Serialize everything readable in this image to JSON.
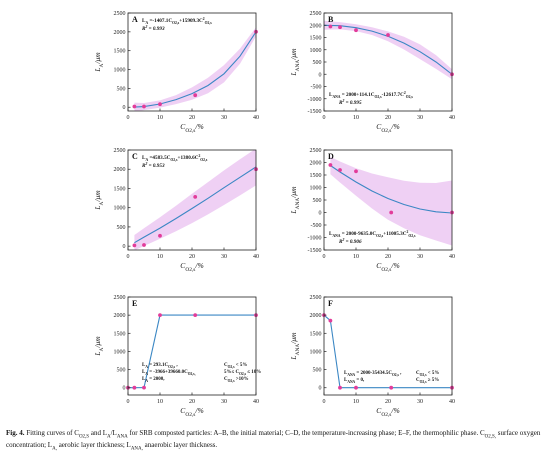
{
  "colors": {
    "curve": "#3b87c4",
    "band": "#ecc8f2",
    "point": "#e23c9a",
    "axis": "#222222"
  },
  "chart_data": [
    {
      "panel": "A",
      "type": "scatter",
      "fit": "quadratic",
      "xlabel": "C_O2,s/%",
      "ylabel": "L_A/μm",
      "equation": "L_A =-1407.1C_O2,s+15909.3C²_O2,s",
      "r2": "R² = 0.993",
      "equation_position": "top-left",
      "xlim": [
        0,
        40
      ],
      "ylim": [
        -100,
        2500
      ],
      "x_ticks": [
        "0",
        "10",
        "20",
        "30",
        "40"
      ],
      "y_ticks": [
        "0",
        "500",
        "1000",
        "1500",
        "2000",
        "2500"
      ],
      "points": [
        [
          2,
          20
        ],
        [
          5,
          20
        ],
        [
          10,
          80
        ],
        [
          21,
          320
        ],
        [
          40,
          2000
        ]
      ],
      "curve": [
        [
          2,
          3
        ],
        [
          5,
          18
        ],
        [
          10,
          86
        ],
        [
          15,
          202
        ],
        [
          20,
          362
        ],
        [
          25,
          577
        ],
        [
          30,
          888
        ],
        [
          35,
          1355
        ],
        [
          40,
          2000
        ]
      ],
      "band": [
        [
          2,
          120
        ],
        [
          5,
          95
        ],
        [
          10,
          95
        ],
        [
          15,
          120
        ],
        [
          20,
          165
        ],
        [
          25,
          205
        ],
        [
          30,
          230
        ],
        [
          35,
          200
        ],
        [
          40,
          120
        ]
      ]
    },
    {
      "panel": "B",
      "type": "scatter",
      "fit": "quadratic",
      "xlabel": "C_O2,s/%",
      "ylabel": "L_ANA/μm",
      "equation": "L_ANA = 2000+114.1C_O2,s-12617.7C²_O2,s",
      "r2": "R² = 0.995",
      "equation_position": "bottom-left",
      "xlim": [
        0,
        40
      ],
      "ylim": [
        -1500,
        2500
      ],
      "x_ticks": [
        "0",
        "10",
        "20",
        "30",
        "40"
      ],
      "y_ticks": [
        "-1500",
        "-1000",
        "-500",
        "0",
        "500",
        "1000",
        "1500",
        "2000",
        "2500"
      ],
      "points": [
        [
          2,
          1950
        ],
        [
          5,
          1920
        ],
        [
          10,
          1800
        ],
        [
          20,
          1600
        ],
        [
          40,
          0
        ]
      ],
      "curve": [
        [
          0,
          2000
        ],
        [
          5,
          1980
        ],
        [
          10,
          1900
        ],
        [
          15,
          1760
        ],
        [
          20,
          1550
        ],
        [
          25,
          1270
        ],
        [
          30,
          920
        ],
        [
          35,
          500
        ],
        [
          40,
          0
        ]
      ],
      "band": [
        [
          0,
          180
        ],
        [
          5,
          150
        ],
        [
          10,
          140
        ],
        [
          15,
          160
        ],
        [
          20,
          200
        ],
        [
          25,
          260
        ],
        [
          30,
          300
        ],
        [
          35,
          280
        ],
        [
          40,
          200
        ]
      ]
    },
    {
      "panel": "C",
      "type": "scatter",
      "fit": "quadratic",
      "xlabel": "C_O2,s/%",
      "ylabel": "L_A/μm",
      "equation": "L_A =4583.5C_O2,s+1380.6C²_O2,s",
      "r2": "R² = 0.953",
      "equation_position": "top-left",
      "xlim": [
        0,
        40
      ],
      "ylim": [
        -100,
        2500
      ],
      "x_ticks": [
        "0",
        "10",
        "20",
        "30",
        "40"
      ],
      "y_ticks": [
        "0",
        "500",
        "1000",
        "1500",
        "2000",
        "2500"
      ],
      "points": [
        [
          2,
          20
        ],
        [
          5,
          30
        ],
        [
          10,
          270
        ],
        [
          21,
          1280
        ],
        [
          40,
          2000
        ]
      ],
      "curve": [
        [
          2,
          90
        ],
        [
          5,
          235
        ],
        [
          10,
          470
        ],
        [
          15,
          720
        ],
        [
          20,
          980
        ],
        [
          25,
          1245
        ],
        [
          30,
          1520
        ],
        [
          35,
          1790
        ],
        [
          40,
          2060
        ]
      ],
      "band": [
        [
          2,
          200
        ],
        [
          5,
          230
        ],
        [
          10,
          280
        ],
        [
          15,
          330
        ],
        [
          20,
          380
        ],
        [
          25,
          420
        ],
        [
          30,
          450
        ],
        [
          35,
          470
        ],
        [
          40,
          480
        ]
      ]
    },
    {
      "panel": "D",
      "type": "scatter",
      "fit": "quadratic",
      "xlabel": "C_O2,s/%",
      "ylabel": "L_ANA/μm",
      "equation": "L_ANA = 2000-9635.0C_O2,s+11005.3C²_O2,s",
      "r2": "R² = 0.906",
      "equation_position": "bottom-left",
      "xlim": [
        0,
        40
      ],
      "ylim": [
        -1500,
        2500
      ],
      "x_ticks": [
        "0",
        "10",
        "20",
        "30",
        "40"
      ],
      "y_ticks": [
        "-1500",
        "-1000",
        "-500",
        "0",
        "500",
        "1000",
        "1500",
        "2000",
        "2500"
      ],
      "points": [
        [
          2,
          1900
        ],
        [
          5,
          1700
        ],
        [
          10,
          1650
        ],
        [
          21,
          0
        ],
        [
          40,
          0
        ]
      ],
      "curve": [
        [
          2,
          1880
        ],
        [
          5,
          1620
        ],
        [
          10,
          1220
        ],
        [
          15,
          860
        ],
        [
          20,
          560
        ],
        [
          25,
          320
        ],
        [
          30,
          140
        ],
        [
          35,
          30
        ],
        [
          40,
          -20
        ]
      ],
      "band": [
        [
          2,
          350
        ],
        [
          5,
          420
        ],
        [
          10,
          550
        ],
        [
          15,
          700
        ],
        [
          20,
          850
        ],
        [
          25,
          950
        ],
        [
          30,
          1050
        ],
        [
          35,
          1150
        ],
        [
          40,
          1300
        ]
      ]
    },
    {
      "panel": "E",
      "type": "line",
      "xlabel": "C_O2,s/%",
      "ylabel": "L_A/μm",
      "equations_left": [
        "L_A = 293.1C_O2,s ,",
        "L_A = -3966+39660.0C_O2,s,",
        "L_A = 2000,"
      ],
      "equations_right": [
        "C_O2,s < 5%",
        "5%≤ C_O2,s ≤ 10%",
        "C_O2,s >10%"
      ],
      "xlim": [
        0,
        40
      ],
      "ylim": [
        -200,
        2500
      ],
      "x_ticks": [
        "0",
        "10",
        "20",
        "30",
        "40"
      ],
      "y_ticks": [
        "0",
        "500",
        "1000",
        "1500",
        "2000",
        "2500"
      ],
      "points": [
        [
          0,
          0
        ],
        [
          2,
          0
        ],
        [
          5,
          5
        ],
        [
          10,
          2000
        ],
        [
          21,
          2000
        ],
        [
          40,
          2000
        ]
      ],
      "line": [
        [
          0,
          0
        ],
        [
          2,
          0
        ],
        [
          5,
          5
        ],
        [
          10,
          2000
        ],
        [
          21,
          2000
        ],
        [
          40,
          2000
        ]
      ]
    },
    {
      "panel": "F",
      "type": "line",
      "xlabel": "C_O2,s/%",
      "ylabel": "L_ANA/μm",
      "equations_left": [
        "L_ANA = 2000-35434.5C_O2,s ,",
        "L_ANA = 0,"
      ],
      "equations_right": [
        "C_O2,s < 5%",
        "C_O2,s ≥ 5%"
      ],
      "xlim": [
        0,
        40
      ],
      "ylim": [
        -200,
        2500
      ],
      "x_ticks": [
        "0",
        "10",
        "20",
        "30",
        "40"
      ],
      "y_ticks": [
        "0",
        "500",
        "1000",
        "1500",
        "2000",
        "2500"
      ],
      "points": [
        [
          0,
          2000
        ],
        [
          2,
          1850
        ],
        [
          5,
          0
        ],
        [
          10,
          0
        ],
        [
          21,
          0
        ],
        [
          40,
          0
        ]
      ],
      "line": [
        [
          0,
          2000
        ],
        [
          2,
          1850
        ],
        [
          5,
          0
        ],
        [
          10,
          0
        ],
        [
          21,
          0
        ],
        [
          40,
          0
        ]
      ]
    }
  ],
  "caption": {
    "label": "Fig. 4.",
    "text": "Fitting curves of C_O2,S and L_A/L_ANA for SRB composted particles: A–B, the initial material; C–D, the temperature-increasing phase; E–F, the thermophilic phase. C_O2,S, surface oxygen concentration; L_A, aerobic layer thickness; L_ANA, anaerobic layer thickness."
  }
}
